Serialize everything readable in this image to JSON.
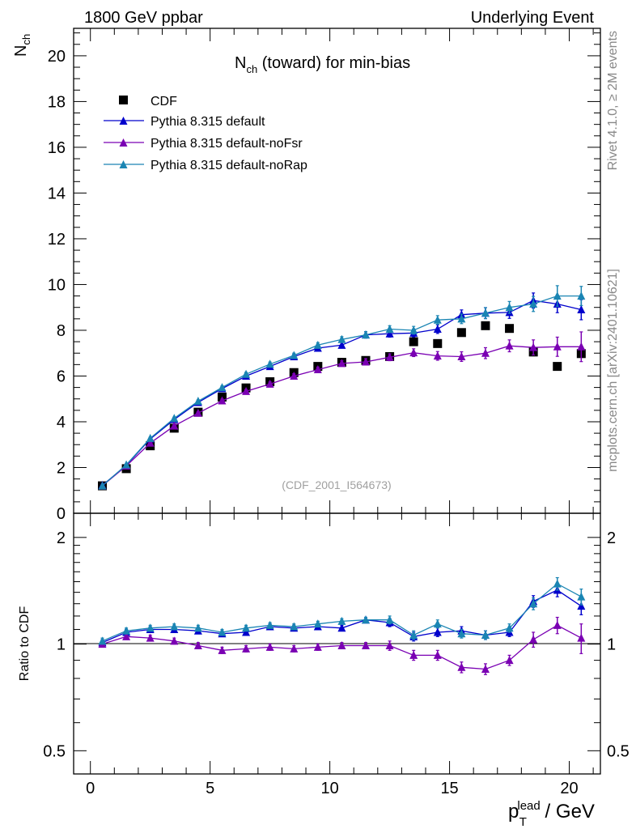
{
  "header": {
    "left": "1800 GeV ppbar",
    "right": "Underlying Event"
  },
  "side": {
    "rivet": "Rivet 4.1.0, ≥ 2M events",
    "mcplots": "mcplots.cern.ch [arXiv:2401.10621]"
  },
  "chart_data": {
    "type": "scatter",
    "title_main": "N",
    "title_sub": "ch",
    "title_rest": " (toward) for min-bias",
    "ylabel_main": "N",
    "ylabel_sub": "ch",
    "xlabel_p": "p",
    "xlabel_sub": "T",
    "xlabel_sup": "lead",
    "xlabel_rest": " / GeV",
    "ratio_ylabel": "Ratio to CDF",
    "watermark": "(CDF_2001_I564673)",
    "xlim": [
      -0.7,
      21.3
    ],
    "ylim": [
      0,
      21.2
    ],
    "ratio_ylim": [
      0.43,
      2.34
    ],
    "x_ticks": [
      "0",
      "5",
      "10",
      "15",
      "20"
    ],
    "y_ticks": [
      "0",
      "2",
      "4",
      "6",
      "8",
      "10",
      "12",
      "14",
      "16",
      "18",
      "20"
    ],
    "ratio_ticks": [
      "0.5",
      "1",
      "2"
    ],
    "x": [
      0.5,
      1.5,
      2.5,
      3.5,
      4.5,
      5.5,
      6.5,
      7.5,
      8.5,
      9.5,
      10.5,
      11.5,
      12.5,
      13.5,
      14.5,
      15.5,
      16.5,
      17.5,
      18.5,
      19.5,
      20.5
    ],
    "series": [
      {
        "name": "CDF",
        "color": "#000000",
        "marker": "square",
        "values": [
          1.2,
          1.95,
          2.95,
          3.72,
          4.42,
          5.08,
          5.48,
          5.75,
          6.15,
          6.42,
          6.6,
          6.68,
          6.85,
          7.5,
          7.42,
          7.9,
          8.2,
          8.08,
          7.05,
          6.42,
          6.98
        ],
        "ratio": [
          1,
          1,
          1,
          1,
          1,
          1,
          1,
          1,
          1,
          1,
          1,
          1,
          1,
          1,
          1,
          1,
          1,
          1,
          1,
          1,
          1
        ]
      },
      {
        "name": "Pythia 8.315 default",
        "color": "#0000cc",
        "marker": "triangle",
        "values": [
          1.22,
          2.1,
          3.25,
          4.1,
          4.85,
          5.45,
          6.0,
          6.42,
          6.85,
          7.22,
          7.35,
          7.8,
          7.85,
          7.88,
          8.05,
          8.68,
          8.75,
          8.78,
          9.3,
          9.15,
          8.9
        ],
        "errors": [
          0.03,
          0.03,
          0.04,
          0.05,
          0.06,
          0.07,
          0.08,
          0.09,
          0.1,
          0.11,
          0.12,
          0.14,
          0.15,
          0.17,
          0.19,
          0.21,
          0.24,
          0.26,
          0.33,
          0.38,
          0.44
        ],
        "ratio": [
          1.01,
          1.08,
          1.1,
          1.1,
          1.09,
          1.07,
          1.08,
          1.12,
          1.11,
          1.12,
          1.11,
          1.17,
          1.15,
          1.05,
          1.08,
          1.09,
          1.06,
          1.08,
          1.32,
          1.42,
          1.28
        ],
        "ratio_errors": [
          0.02,
          0.02,
          0.02,
          0.02,
          0.02,
          0.02,
          0.02,
          0.02,
          0.02,
          0.02,
          0.02,
          0.02,
          0.03,
          0.03,
          0.03,
          0.03,
          0.03,
          0.03,
          0.05,
          0.06,
          0.07
        ]
      },
      {
        "name": "Pythia 8.315 default-noFsr",
        "color": "#7a00b3",
        "marker": "triangle",
        "values": [
          1.2,
          2.07,
          3.07,
          3.82,
          4.38,
          4.92,
          5.33,
          5.65,
          6.0,
          6.28,
          6.55,
          6.62,
          6.82,
          7.02,
          6.88,
          6.85,
          7.0,
          7.32,
          7.25,
          7.28,
          7.28
        ],
        "errors": [
          0.03,
          0.03,
          0.04,
          0.05,
          0.06,
          0.07,
          0.08,
          0.09,
          0.1,
          0.11,
          0.12,
          0.14,
          0.15,
          0.17,
          0.19,
          0.21,
          0.24,
          0.26,
          0.33,
          0.42,
          0.65
        ],
        "ratio": [
          1.0,
          1.05,
          1.04,
          1.02,
          0.99,
          0.96,
          0.97,
          0.98,
          0.97,
          0.98,
          0.99,
          0.99,
          0.99,
          0.93,
          0.93,
          0.86,
          0.85,
          0.9,
          1.03,
          1.13,
          1.04
        ],
        "ratio_errors": [
          0.02,
          0.02,
          0.02,
          0.02,
          0.02,
          0.02,
          0.02,
          0.02,
          0.02,
          0.02,
          0.02,
          0.02,
          0.03,
          0.03,
          0.03,
          0.03,
          0.03,
          0.03,
          0.05,
          0.06,
          0.1
        ]
      },
      {
        "name": "Pythia 8.315 default-noRap",
        "color": "#1a85b3",
        "marker": "triangle",
        "values": [
          1.2,
          2.12,
          3.28,
          4.15,
          4.9,
          5.5,
          6.08,
          6.52,
          6.9,
          7.35,
          7.6,
          7.8,
          8.05,
          8.0,
          8.45,
          8.5,
          8.75,
          9.0,
          9.15,
          9.5,
          9.5
        ],
        "errors": [
          0.03,
          0.03,
          0.04,
          0.05,
          0.06,
          0.07,
          0.08,
          0.09,
          0.1,
          0.11,
          0.12,
          0.14,
          0.15,
          0.17,
          0.19,
          0.21,
          0.24,
          0.26,
          0.33,
          0.45,
          0.42
        ],
        "ratio": [
          1.02,
          1.09,
          1.11,
          1.12,
          1.11,
          1.08,
          1.11,
          1.13,
          1.12,
          1.14,
          1.16,
          1.17,
          1.17,
          1.06,
          1.14,
          1.07,
          1.06,
          1.11,
          1.3,
          1.48,
          1.36
        ],
        "ratio_errors": [
          0.02,
          0.02,
          0.02,
          0.02,
          0.02,
          0.02,
          0.02,
          0.02,
          0.02,
          0.02,
          0.02,
          0.02,
          0.03,
          0.03,
          0.03,
          0.03,
          0.03,
          0.03,
          0.05,
          0.06,
          0.07
        ]
      }
    ]
  }
}
